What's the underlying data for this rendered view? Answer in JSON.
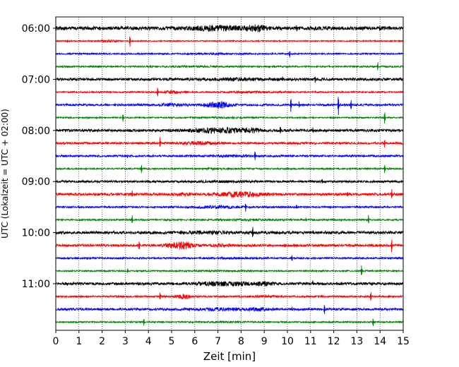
{
  "chart_data": {
    "type": "line",
    "title": "",
    "xlabel": "Zeit  [min]",
    "ylabel": "UTC (Lokalzeit = UTC + 02:00)",
    "xlim": [
      0,
      15
    ],
    "x_ticks": [
      "0",
      "1",
      "2",
      "3",
      "4",
      "5",
      "6",
      "7",
      "8",
      "9",
      "10",
      "11",
      "12",
      "13",
      "14",
      "15"
    ],
    "x_grid": "dotted vertical lines at each minute",
    "trace_interval_minutes": 15,
    "y_ticks": [
      "06:00",
      "07:00",
      "08:00",
      "09:00",
      "10:00",
      "11:00"
    ],
    "trace_colors": [
      "#000000",
      "#ff0000",
      "#0000ff",
      "#008000"
    ],
    "series": [
      {
        "start": "06:00",
        "amp": 2.5,
        "bursts": [
          {
            "t": 7.0,
            "w": 2.2,
            "a": 1.0
          },
          {
            "t": 8.7,
            "w": 0.8,
            "a": 1.2
          }
        ],
        "spikes": [
          {
            "t": 10.4,
            "a": 6
          },
          {
            "t": 14.0,
            "a": 3
          }
        ]
      },
      {
        "start": "06:15",
        "amp": 0.8,
        "bursts": [
          {
            "t": 2.2,
            "w": 0.8,
            "a": 1.5
          }
        ],
        "spikes": [
          {
            "t": 3.2,
            "a": 9
          },
          {
            "t": 0.5,
            "a": 2
          }
        ]
      },
      {
        "start": "06:30",
        "amp": 1.0,
        "bursts": [
          {
            "t": 7.0,
            "w": 2.0,
            "a": 0.5
          }
        ],
        "spikes": [
          {
            "t": 10.1,
            "a": 5
          }
        ]
      },
      {
        "start": "06:45",
        "amp": 1.1,
        "bursts": [
          {
            "t": 6.0,
            "w": 2.5,
            "a": 0.4
          }
        ],
        "spikes": [
          {
            "t": 13.9,
            "a": 7
          },
          {
            "t": 4.1,
            "a": 2
          }
        ]
      },
      {
        "start": "07:00",
        "amp": 1.8,
        "bursts": [
          {
            "t": 8.0,
            "w": 3.0,
            "a": 0.5
          }
        ],
        "spikes": [
          {
            "t": 11.2,
            "a": 4
          },
          {
            "t": 9.8,
            "a": 3
          }
        ]
      },
      {
        "start": "07:15",
        "amp": 1.0,
        "bursts": [
          {
            "t": 5.0,
            "w": 0.6,
            "a": 2.0
          },
          {
            "t": 8.5,
            "w": 1.8,
            "a": 0.8
          }
        ],
        "spikes": [
          {
            "t": 4.4,
            "a": 7
          },
          {
            "t": 15.0,
            "a": 3
          }
        ]
      },
      {
        "start": "07:30",
        "amp": 1.4,
        "bursts": [
          {
            "t": 7.0,
            "w": 1.0,
            "a": 3.2
          },
          {
            "t": 5.0,
            "w": 1.5,
            "a": 0.8
          }
        ],
        "spikes": [
          {
            "t": 10.15,
            "a": 10
          },
          {
            "t": 12.2,
            "a": 16
          },
          {
            "t": 12.75,
            "a": 7
          },
          {
            "t": 10.5,
            "a": 4
          }
        ]
      },
      {
        "start": "07:45",
        "amp": 0.9,
        "bursts": [
          {
            "t": 7.0,
            "w": 2.5,
            "a": 0.5
          }
        ],
        "spikes": [
          {
            "t": 2.9,
            "a": 6
          },
          {
            "t": 14.2,
            "a": 9
          }
        ]
      },
      {
        "start": "08:00",
        "amp": 1.8,
        "bursts": [
          {
            "t": 7.0,
            "w": 2.2,
            "a": 1.5
          },
          {
            "t": 8.5,
            "w": 0.7,
            "a": 1.4
          }
        ],
        "spikes": [
          {
            "t": 9.7,
            "a": 6
          },
          {
            "t": 11.1,
            "a": 3
          }
        ]
      },
      {
        "start": "08:15",
        "amp": 1.5,
        "bursts": [
          {
            "t": 6.2,
            "w": 1.4,
            "a": 1.0
          }
        ],
        "spikes": [
          {
            "t": 4.5,
            "a": 8
          },
          {
            "t": 14.2,
            "a": 6
          }
        ]
      },
      {
        "start": "08:30",
        "amp": 1.3,
        "bursts": [
          {
            "t": 7.5,
            "w": 2.5,
            "a": 0.4
          }
        ],
        "spikes": [
          {
            "t": 8.6,
            "a": 7
          },
          {
            "t": 3.1,
            "a": 2
          }
        ]
      },
      {
        "start": "08:45",
        "amp": 1.0,
        "bursts": [
          {
            "t": 7.0,
            "w": 2.5,
            "a": 0.3
          }
        ],
        "spikes": [
          {
            "t": 3.7,
            "a": 6
          },
          {
            "t": 14.2,
            "a": 7
          },
          {
            "t": 1.3,
            "a": 3
          }
        ]
      },
      {
        "start": "09:00",
        "amp": 1.4,
        "bursts": [
          {
            "t": 7.0,
            "w": 2.8,
            "a": 0.4
          }
        ],
        "spikes": [
          {
            "t": 11.5,
            "a": 3
          }
        ]
      },
      {
        "start": "09:15",
        "amp": 1.7,
        "bursts": [
          {
            "t": 8.0,
            "w": 1.8,
            "a": 1.8
          },
          {
            "t": 5.5,
            "w": 1.0,
            "a": 0.6
          }
        ],
        "spikes": [
          {
            "t": 3.3,
            "a": 6
          },
          {
            "t": 14.5,
            "a": 8
          },
          {
            "t": 12.6,
            "a": 3
          }
        ]
      },
      {
        "start": "09:30",
        "amp": 1.2,
        "bursts": [
          {
            "t": 7.0,
            "w": 2.0,
            "a": 1.2
          }
        ],
        "spikes": [
          {
            "t": 8.2,
            "a": 6
          },
          {
            "t": 10.4,
            "a": 3
          }
        ]
      },
      {
        "start": "09:45",
        "amp": 1.1,
        "bursts": [
          {
            "t": 8.5,
            "w": 2.2,
            "a": 0.5
          }
        ],
        "spikes": [
          {
            "t": 3.3,
            "a": 7
          },
          {
            "t": 13.5,
            "a": 6
          },
          {
            "t": 10.8,
            "a": 3
          }
        ]
      },
      {
        "start": "10:00",
        "amp": 1.9,
        "bursts": [
          {
            "t": 6.5,
            "w": 3.0,
            "a": 0.5
          }
        ],
        "spikes": [
          {
            "t": 8.5,
            "a": 8
          },
          {
            "t": 11.1,
            "a": 4
          },
          {
            "t": 1.5,
            "a": 2
          }
        ]
      },
      {
        "start": "10:15",
        "amp": 1.6,
        "bursts": [
          {
            "t": 5.4,
            "w": 1.1,
            "a": 2.8
          },
          {
            "t": 7.2,
            "w": 0.8,
            "a": 1.0
          }
        ],
        "spikes": [
          {
            "t": 3.6,
            "a": 7
          },
          {
            "t": 14.5,
            "a": 9
          },
          {
            "t": 9.9,
            "a": 3
          }
        ]
      },
      {
        "start": "10:30",
        "amp": 1.1,
        "bursts": [
          {
            "t": 7.5,
            "w": 2.5,
            "a": 0.4
          }
        ],
        "spikes": [
          {
            "t": 10.2,
            "a": 5
          },
          {
            "t": 1.5,
            "a": 2
          }
        ]
      },
      {
        "start": "10:45",
        "amp": 1.0,
        "bursts": [
          {
            "t": 7.0,
            "w": 2.5,
            "a": 0.3
          }
        ],
        "spikes": [
          {
            "t": 3.1,
            "a": 4
          },
          {
            "t": 13.2,
            "a": 8
          }
        ]
      },
      {
        "start": "11:00",
        "amp": 1.8,
        "bursts": [
          {
            "t": 7.2,
            "w": 2.2,
            "a": 1.2
          },
          {
            "t": 9.0,
            "w": 0.8,
            "a": 0.9
          }
        ],
        "spikes": [
          {
            "t": 11.1,
            "a": 3
          }
        ]
      },
      {
        "start": "11:15",
        "amp": 1.2,
        "bursts": [
          {
            "t": 5.5,
            "w": 0.7,
            "a": 2.2
          },
          {
            "t": 9.0,
            "w": 1.5,
            "a": 0.6
          }
        ],
        "spikes": [
          {
            "t": 4.5,
            "a": 6
          },
          {
            "t": 13.6,
            "a": 7
          }
        ]
      },
      {
        "start": "11:30",
        "amp": 1.6,
        "bursts": [
          {
            "t": 7.2,
            "w": 2.5,
            "a": 0.7
          },
          {
            "t": 8.8,
            "w": 0.8,
            "a": 0.7
          }
        ],
        "spikes": [
          {
            "t": 11.6,
            "a": 6
          },
          {
            "t": 10.2,
            "a": 3
          }
        ]
      },
      {
        "start": "11:45",
        "amp": 1.0,
        "bursts": [
          {
            "t": 7.0,
            "w": 2.5,
            "a": 0.3
          }
        ],
        "spikes": [
          {
            "t": 3.8,
            "a": 6
          },
          {
            "t": 13.7,
            "a": 6
          }
        ]
      }
    ]
  }
}
